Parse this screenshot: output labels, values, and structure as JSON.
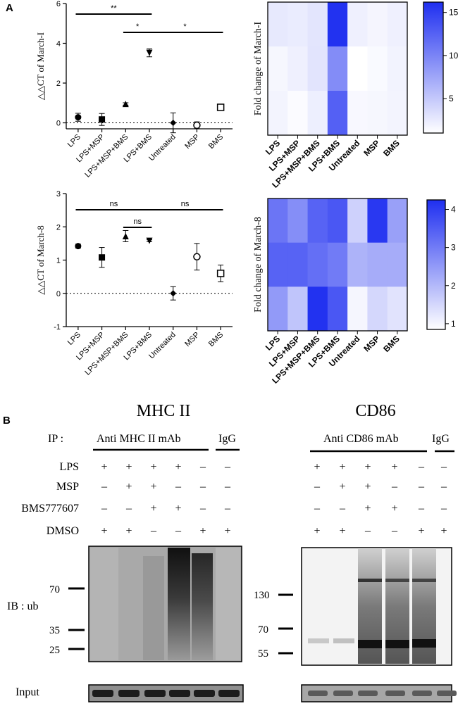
{
  "panel_a_label": "A",
  "panel_b_label": "B",
  "chart_data": [
    {
      "type": "scatter",
      "title": "",
      "ylabel": "△△CT of March-I",
      "categories": [
        "LPS",
        "LPS+MSP",
        "LPS+MSP+BMS",
        "LPS+BMS",
        "Untreated",
        "MSP",
        "BMS"
      ],
      "values": [
        0.28,
        0.17,
        0.95,
        3.52,
        0.0,
        -0.12,
        0.78
      ],
      "errors": [
        0.2,
        0.3,
        0.06,
        0.2,
        0.5,
        0.17,
        0.1
      ],
      "markers": [
        "circle",
        "square",
        "triangle-up",
        "triangle-down",
        "diamond",
        "open-circle",
        "open-square"
      ],
      "ylim": [
        -0.3,
        6
      ],
      "yticks": [
        0,
        2,
        4,
        6
      ],
      "reference_line": 0,
      "significance": [
        {
          "from": "LPS",
          "to": "LPS+BMS",
          "label": "**"
        },
        {
          "from": "LPS+MSP+BMS",
          "to": "LPS+BMS",
          "label": "*"
        },
        {
          "from": "LPS+BMS",
          "to": "BMS",
          "label": "*"
        }
      ]
    },
    {
      "type": "heatmap",
      "ylabel": "Fold change of March-I",
      "categories": [
        "LPS",
        "LPS+MSP",
        "LPS+MSP+BMS",
        "LPS+BMS",
        "Untreated",
        "MSP",
        "BMS"
      ],
      "matrix": [
        [
          2.6,
          2.4,
          2.9,
          16.0,
          2.1,
          1.7,
          2.1
        ],
        [
          1.6,
          2.1,
          3.0,
          9.4,
          1.0,
          1.4,
          1.9
        ],
        [
          1.8,
          1.3,
          2.2,
          12.6,
          1.5,
          1.6,
          1.8
        ]
      ],
      "colorbar_range": [
        1,
        16.2
      ],
      "colorbar_ticks": [
        5,
        10,
        15
      ],
      "color_low": "#ffffff",
      "color_high": "#1f2ff0"
    },
    {
      "type": "scatter",
      "title": "",
      "ylabel": "△△CT of March-8",
      "categories": [
        "LPS",
        "LPS+MSP",
        "LPS+MSP+BMS",
        "LPS+BMS",
        "Untreated",
        "MSP",
        "BMS"
      ],
      "values": [
        1.42,
        1.08,
        1.72,
        1.58,
        0.0,
        1.1,
        0.6
      ],
      "errors": [
        0.06,
        0.3,
        0.17,
        0.03,
        0.2,
        0.4,
        0.25
      ],
      "markers": [
        "circle",
        "square",
        "triangle-up",
        "triangle-down",
        "diamond",
        "open-circle",
        "open-square"
      ],
      "ylim": [
        -1,
        3
      ],
      "yticks": [
        -1,
        0,
        1,
        2,
        3
      ],
      "reference_line": 0,
      "significance": [
        {
          "from": "LPS",
          "to": "LPS+BMS",
          "label": "ns"
        },
        {
          "from": "LPS+MSP+BMS",
          "to": "LPS+BMS",
          "label": "ns"
        },
        {
          "from": "LPS+BMS",
          "to": "BMS",
          "label": "ns"
        }
      ]
    },
    {
      "type": "heatmap",
      "ylabel": "Fold change of March-8",
      "categories": [
        "LPS",
        "LPS+MSP",
        "LPS+MSP+BMS",
        "LPS+BMS",
        "Untreated",
        "MSP",
        "BMS"
      ],
      "matrix": [
        [
          3.1,
          2.7,
          3.4,
          3.6,
          1.6,
          4.1,
          2.4
        ],
        [
          3.4,
          3.4,
          3.2,
          3.0,
          2.1,
          2.2,
          2.2
        ],
        [
          2.5,
          1.8,
          4.2,
          3.6,
          1.0,
          1.5,
          1.3
        ]
      ],
      "colorbar_range": [
        0.85,
        4.25
      ],
      "colorbar_ticks": [
        1,
        2,
        3,
        4
      ],
      "color_low": "#ffffff",
      "color_high": "#1f2ff0"
    }
  ],
  "blots": {
    "left": {
      "title": "MHC II",
      "ip_label": "IP :",
      "antibody": "Anti MHC II mAb",
      "control": "IgG",
      "ib_label": "IB :  ub",
      "markers_kda": [
        "70",
        "35",
        "25"
      ],
      "input_label": "Input"
    },
    "right": {
      "title": "CD86",
      "antibody": "Anti CD86 mAb",
      "control": "IgG",
      "markers_kda": [
        "130",
        "70",
        "55"
      ]
    },
    "treatment_rows": [
      {
        "name": "LPS",
        "left": [
          "+",
          "+",
          "+",
          "+",
          "–",
          "–"
        ],
        "right": [
          "+",
          "+",
          "+",
          "+",
          "–",
          "–"
        ]
      },
      {
        "name": "MSP",
        "left": [
          "–",
          "+",
          "+",
          "–",
          "–",
          "–"
        ],
        "right": [
          "–",
          "+",
          "+",
          "–",
          "–",
          "–"
        ]
      },
      {
        "name": "BMS777607",
        "left": [
          "–",
          "–",
          "+",
          "+",
          "–",
          "–"
        ],
        "right": [
          "–",
          "–",
          "+",
          "+",
          "–",
          "–"
        ]
      },
      {
        "name": "DMSO",
        "left": [
          "+",
          "+",
          "–",
          "–",
          "+",
          "+"
        ],
        "right": [
          "+",
          "+",
          "–",
          "–",
          "+",
          "+"
        ]
      }
    ]
  }
}
